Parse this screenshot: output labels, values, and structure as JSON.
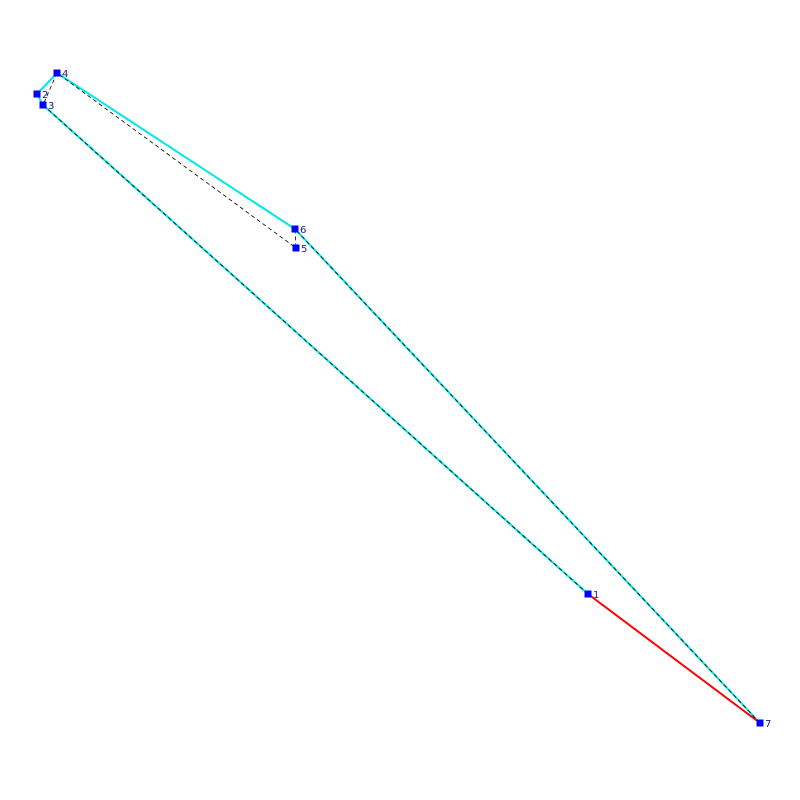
{
  "colors": {
    "background": "#ffffff",
    "vertex": "#0000ff",
    "outline": "#00e8e8",
    "highlight_edge": "#ff0000",
    "dashed_path": "#000000",
    "label": "#1a1a80"
  },
  "vertices": [
    {
      "id": "v1",
      "label": "1"
    },
    {
      "id": "v2",
      "label": "2"
    },
    {
      "id": "v3",
      "label": "3"
    },
    {
      "id": "v4",
      "label": "4"
    },
    {
      "id": "v5",
      "label": "5"
    },
    {
      "id": "v6",
      "label": "6"
    },
    {
      "id": "v7",
      "label": "7"
    }
  ],
  "outline_path": [
    "v7",
    "v6",
    "v4",
    "v2",
    "v3",
    "v1"
  ],
  "dashed_path": [
    "v1",
    "v3",
    "v4",
    "v5",
    "v6",
    "v7"
  ],
  "highlight_edge": [
    "v1",
    "v7"
  ]
}
